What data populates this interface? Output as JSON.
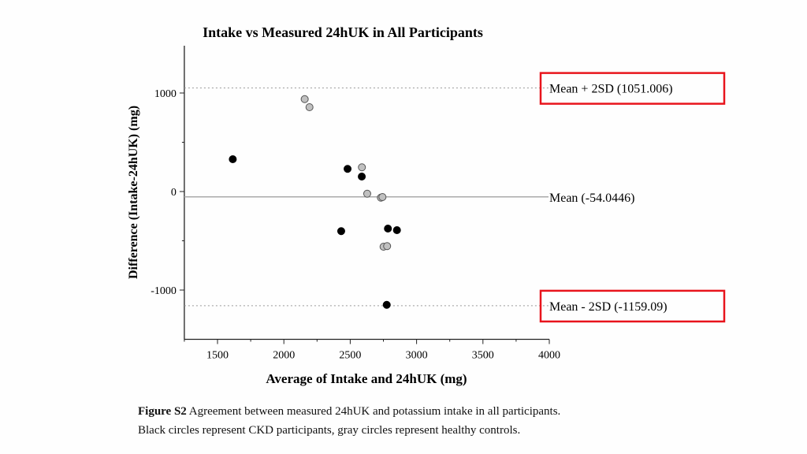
{
  "chart_data": {
    "type": "scatter",
    "title": "Intake vs Measured 24hUK in All Participants",
    "xlabel": "Average of Intake and 24hUK (mg)",
    "ylabel": "Difference (Intake-24hUK) (mg)",
    "xlim": [
      1250,
      4000
    ],
    "ylim": [
      -1500,
      1480
    ],
    "xticks": [
      1500,
      2000,
      2500,
      3000,
      3500,
      4000
    ],
    "yticks": [
      1000,
      0,
      -1000
    ],
    "grid": false,
    "series": [
      {
        "name": "CKD participants",
        "color": "#000000",
        "points": [
          [
            1615,
            328
          ],
          [
            2480,
            230
          ],
          [
            2587,
            152
          ],
          [
            2432,
            -402
          ],
          [
            2784,
            -376
          ],
          [
            2852,
            -392
          ],
          [
            2775,
            -1150
          ]
        ]
      },
      {
        "name": "Healthy controls",
        "color": "#c0c0c0",
        "points": [
          [
            2157,
            938
          ],
          [
            2193,
            856
          ],
          [
            2588,
            246
          ],
          [
            2628,
            -22
          ],
          [
            2731,
            -62
          ],
          [
            2743,
            -56
          ],
          [
            2751,
            -560
          ],
          [
            2778,
            -554
          ]
        ]
      }
    ],
    "reference_lines": [
      {
        "value": 1051.006,
        "label": "Mean + 2SD (1051.006)",
        "style": "dotted",
        "highlighted": true
      },
      {
        "value": -54.0446,
        "label": "Mean (-54.0446)",
        "style": "solid",
        "highlighted": false
      },
      {
        "value": -1159.09,
        "label": "Mean - 2SD (-1159.09)",
        "style": "dotted",
        "highlighted": true
      }
    ],
    "highlight_color": "#e8141c"
  },
  "caption": {
    "label": "Figure S2",
    "line1": "Agreement between measured 24hUK and potassium intake in all participants.",
    "line2": "Black circles represent CKD participants, gray circles represent healthy controls."
  }
}
